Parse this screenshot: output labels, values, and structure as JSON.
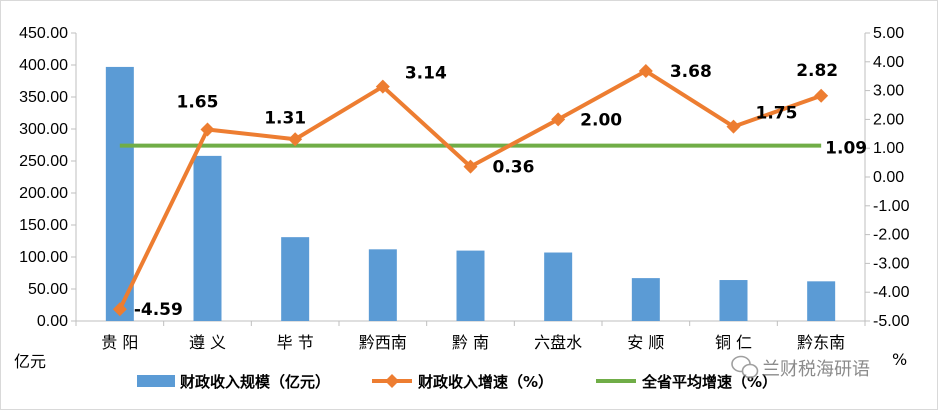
{
  "chart_data": {
    "type": "bar+line",
    "categories": [
      "贵 阳",
      "遵 义",
      "毕 节",
      "黔西南",
      "黔 南",
      "六盘水",
      "安 顺",
      "铜 仁",
      "黔东南"
    ],
    "series": [
      {
        "name": "财政收入规模（亿元）",
        "type": "bar",
        "axis": "left",
        "color": "#5b9bd5",
        "values": [
          397,
          258,
          131,
          112,
          110,
          107,
          67,
          64,
          62
        ]
      },
      {
        "name": "财政收入增速（%）",
        "type": "line",
        "axis": "right",
        "color": "#ed7d31",
        "values": [
          -4.59,
          1.65,
          1.31,
          3.14,
          0.36,
          2.0,
          3.68,
          1.75,
          2.82
        ],
        "labels": [
          "-4.59",
          "1.65",
          "1.31",
          "3.14",
          "0.36",
          "2.00",
          "3.68",
          "1.75",
          "2.82"
        ],
        "highlight_color": "#ff0000"
      },
      {
        "name": "全省平均增速（%）",
        "type": "line",
        "axis": "right",
        "color": "#70ad47",
        "values": [
          1.09,
          1.09,
          1.09,
          1.09,
          1.09,
          1.09,
          1.09,
          1.09,
          1.09
        ],
        "end_label": "1.09"
      }
    ],
    "left_axis": {
      "range": [
        0,
        450
      ],
      "ticks": [
        "0.00",
        "50.00",
        "100.00",
        "150.00",
        "200.00",
        "250.00",
        "300.00",
        "350.00",
        "400.00",
        "450.00"
      ],
      "unit": "亿元"
    },
    "right_axis": {
      "range": [
        -5,
        5
      ],
      "ticks": [
        "-5.00",
        "-4.00",
        "-3.00",
        "-2.00",
        "-1.00",
        "0.00",
        "1.00",
        "2.00",
        "3.00",
        "4.00",
        "5.00"
      ],
      "unit": "%"
    },
    "grid": false,
    "legend_position": "bottom"
  },
  "watermark": {
    "text": "兰财税海研语",
    "icon": "wechat-icon"
  }
}
